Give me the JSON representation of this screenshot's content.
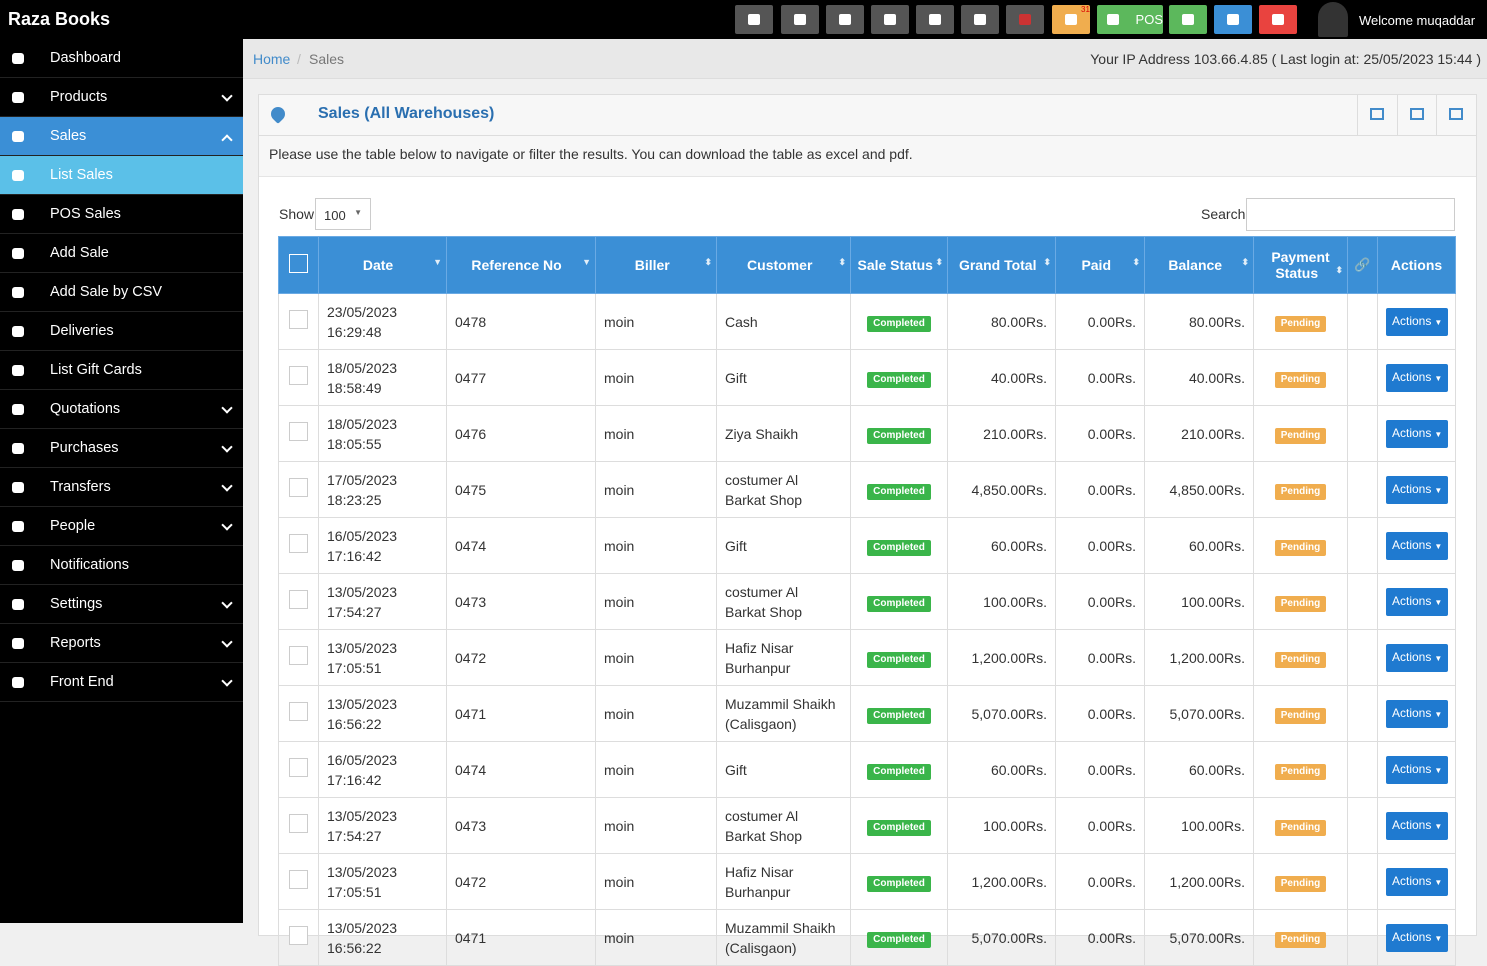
{
  "header": {
    "brand": "Raza Books",
    "pos": "POS",
    "badge": "31",
    "welcome": "Welcome muqaddar"
  },
  "sidebar": {
    "items": [
      "Dashboard",
      "Products",
      "Sales",
      "List Sales",
      "POS Sales",
      "Add Sale",
      "Add Sale by CSV",
      "Deliveries",
      "List Gift Cards",
      "Quotations",
      "Purchases",
      "Transfers",
      "People",
      "Notifications",
      "Settings",
      "Reports",
      "Front End"
    ]
  },
  "breadcrumb": [
    "Home",
    "Sales"
  ],
  "ip_info": "Your IP Address 103.66.4.85 ( Last login at: 25/05/2023 15:44 )",
  "panel": {
    "title": "Sales (All Warehouses)",
    "intro": "Please use the table below to navigate or filter the results. You can download the table as excel and pdf."
  },
  "table": {
    "show_label": "Show",
    "page_size": "100",
    "search_label": "Search",
    "columns": [
      "Date",
      "Reference No",
      "Biller",
      "Customer",
      "Sale Status",
      "Grand Total",
      "Paid",
      "Balance",
      "Payment Status",
      "Actions"
    ],
    "rows": [
      [
        "23/05/2023 16:29:48",
        "0478",
        "moin",
        "Cash",
        "Completed",
        "80.00Rs.",
        "0.00Rs.",
        "80.00Rs.",
        "Pending",
        "Actions"
      ],
      [
        "18/05/2023 18:58:49",
        "0477",
        "moin",
        "Gift",
        "Completed",
        "40.00Rs.",
        "0.00Rs.",
        "40.00Rs.",
        "Pending",
        "Actions"
      ],
      [
        "18/05/2023 18:05:55",
        "0476",
        "moin",
        "Ziya Shaikh",
        "Completed",
        "210.00Rs.",
        "0.00Rs.",
        "210.00Rs.",
        "Pending",
        "Actions"
      ],
      [
        "17/05/2023 18:23:25",
        "0475",
        "moin",
        "costumer Al Barkat Shop",
        "Completed",
        "4,850.00Rs.",
        "0.00Rs.",
        "4,850.00Rs.",
        "Pending",
        "Actions"
      ],
      [
        "16/05/2023 17:16:42",
        "0474",
        "moin",
        "Gift",
        "Completed",
        "60.00Rs.",
        "0.00Rs.",
        "60.00Rs.",
        "Pending",
        "Actions"
      ],
      [
        "13/05/2023 17:54:27",
        "0473",
        "moin",
        "costumer Al Barkat Shop",
        "Completed",
        "100.00Rs.",
        "0.00Rs.",
        "100.00Rs.",
        "Pending",
        "Actions"
      ],
      [
        "13/05/2023 17:05:51",
        "0472",
        "moin",
        "Hafiz Nisar Burhanpur",
        "Completed",
        "1,200.00Rs.",
        "0.00Rs.",
        "1,200.00Rs.",
        "Pending",
        "Actions"
      ],
      [
        "13/05/2023 16:56:22",
        "0471",
        "moin",
        "Muzammil Shaikh (Calisgaon)",
        "Completed",
        "5,070.00Rs.",
        "0.00Rs.",
        "5,070.00Rs.",
        "Pending",
        "Actions"
      ],
      [
        "16/05/2023 17:16:42",
        "0474",
        "moin",
        "Gift",
        "Completed",
        "60.00Rs.",
        "0.00Rs.",
        "60.00Rs.",
        "Pending",
        "Actions"
      ],
      [
        "13/05/2023 17:54:27",
        "0473",
        "moin",
        "costumer Al Barkat Shop",
        "Completed",
        "100.00Rs.",
        "0.00Rs.",
        "100.00Rs.",
        "Pending",
        "Actions"
      ],
      [
        "13/05/2023 17:05:51",
        "0472",
        "moin",
        "Hafiz Nisar Burhanpur",
        "Completed",
        "1,200.00Rs.",
        "0.00Rs.",
        "1,200.00Rs.",
        "Pending",
        "Actions"
      ],
      [
        "13/05/2023 16:56:22",
        "0471",
        "moin",
        "Muzammil Shaikh (Calisgaon)",
        "Completed",
        "5,070.00Rs.",
        "0.00Rs.",
        "5,070.00Rs.",
        "Pending",
        "Actions"
      ]
    ]
  }
}
